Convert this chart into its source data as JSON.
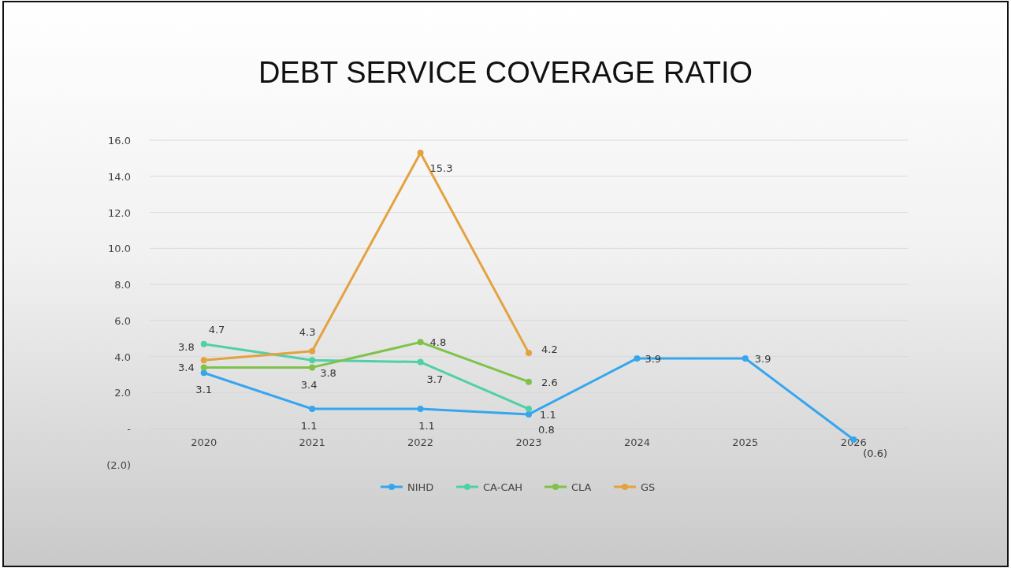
{
  "chart_data": {
    "type": "line",
    "title": "DEBT SERVICE COVERAGE RATIO",
    "categories": [
      "2020",
      "2021",
      "2022",
      "2023",
      "2024",
      "2025",
      "2026"
    ],
    "series": [
      {
        "name": "NIHD",
        "color": "#35a6ee",
        "values": [
          3.1,
          1.1,
          1.1,
          0.8,
          3.9,
          3.9,
          -0.6
        ],
        "value_labels": [
          "3.1",
          "1.1",
          "1.1",
          "0.8",
          "3.9",
          "3.9",
          "(0.6)"
        ]
      },
      {
        "name": "CA-CAH",
        "color": "#4fd0a8",
        "values": [
          4.7,
          3.8,
          3.7,
          1.1,
          null,
          null,
          null
        ],
        "value_labels": [
          "4.7",
          "3.8",
          "3.7",
          "1.1",
          null,
          null,
          null
        ]
      },
      {
        "name": "CLA",
        "color": "#7fc24a",
        "values": [
          3.4,
          3.4,
          4.8,
          2.6,
          null,
          null,
          null
        ],
        "value_labels": [
          "3.4",
          "3.4",
          "4.8",
          "2.6",
          null,
          null,
          null
        ]
      },
      {
        "name": "GS",
        "color": "#e3a23f",
        "values": [
          3.8,
          4.3,
          15.3,
          4.2,
          null,
          null,
          null
        ],
        "value_labels": [
          "3.8",
          "4.3",
          "15.3",
          "4.2",
          null,
          null,
          null
        ]
      }
    ],
    "ylim": [
      -2,
      16
    ],
    "yticks": [
      {
        "value": -2,
        "label": "(2.0)"
      },
      {
        "value": 0,
        "label": "-"
      },
      {
        "value": 2,
        "label": "2.0"
      },
      {
        "value": 4,
        "label": "4.0"
      },
      {
        "value": 6,
        "label": "6.0"
      },
      {
        "value": 8,
        "label": "8.0"
      },
      {
        "value": 10,
        "label": "10.0"
      },
      {
        "value": 12,
        "label": "12.0"
      },
      {
        "value": 14,
        "label": "14.0"
      },
      {
        "value": 16,
        "label": "16.0"
      }
    ],
    "grid": "y",
    "legend": "bottom",
    "marker": "circle",
    "line_style": "solid"
  }
}
